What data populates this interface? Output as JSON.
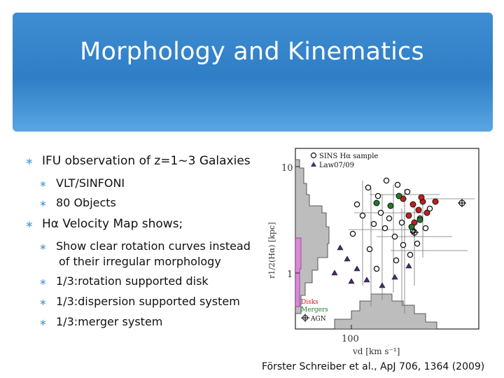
{
  "slide": {
    "title": "Morphology and Kinematics",
    "bullets": [
      {
        "text": "IFU observation of z=1~3 Galaxies",
        "sub": [
          "VLT/SINFONI",
          "80 Objects"
        ]
      },
      {
        "text": "Hα  Velocity Map shows;",
        "sub": [
          "Show clear rotation curves instead",
          "of their irregular morphology",
          "1/3:rotation supported disk",
          "1/3:dispersion supported system",
          "1/3:merger system"
        ]
      }
    ],
    "caption": "Förster Schreiber et al., ApJ 706, 1364 (2009)"
  },
  "figure": {
    "legend_top": [
      "SINS Hα sample",
      "Law07/09"
    ],
    "legend_bottom": [
      "Disks",
      "Mergers",
      "AGN"
    ],
    "y_tick_10": "10",
    "y_tick_1": "1",
    "y_label": "r1/2(Hα)  [kpc]",
    "x_tick_100": "100",
    "x_label": "vd  [km s⁻¹]",
    "colors": {
      "disk": "#c41e1e",
      "merger": "#1f7a2a",
      "law": "#4b2a6b",
      "hist": "#bdbdbd",
      "hist_law": "#d98ad6"
    }
  }
}
